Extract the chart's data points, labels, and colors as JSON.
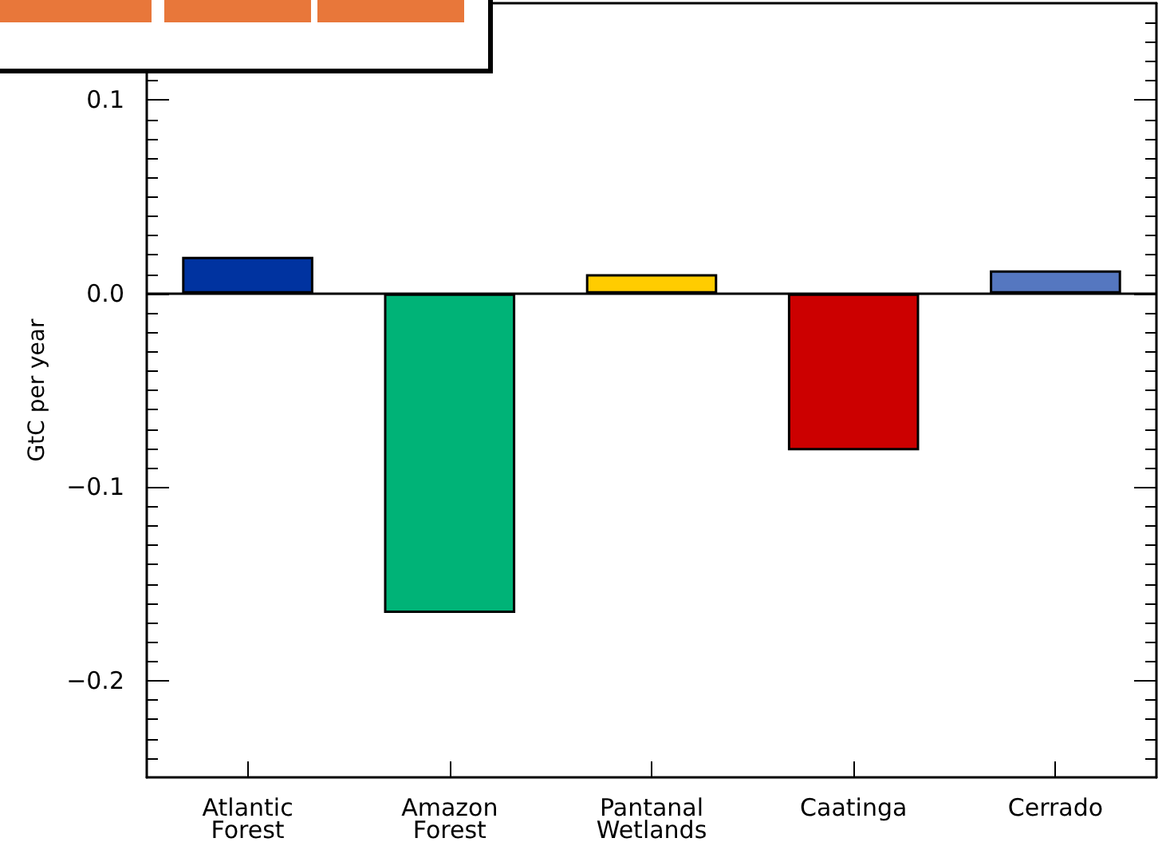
{
  "chart_data": {
    "type": "bar",
    "ylabel": "GtC per year",
    "categories": [
      "Atlantic\nForest",
      "Amazon\nForest",
      "Pantanal\nWetlands",
      "Caatinga",
      "Cerrado"
    ],
    "values": [
      0.019,
      -0.165,
      0.01,
      -0.081,
      0.012
    ],
    "colors": [
      "#0033a0",
      "#00b377",
      "#ffcc00",
      "#cc0000",
      "#5577c0"
    ],
    "ylim": [
      -0.25,
      0.15
    ],
    "yticks": [
      {
        "value": -0.24,
        "label": null
      },
      {
        "value": -0.23,
        "label": null
      },
      {
        "value": -0.22,
        "label": null
      },
      {
        "value": -0.21,
        "label": null
      },
      {
        "value": -0.2,
        "label": "−0.2"
      },
      {
        "value": -0.19,
        "label": null
      },
      {
        "value": -0.18,
        "label": null
      },
      {
        "value": -0.17,
        "label": null
      },
      {
        "value": -0.16,
        "label": null
      },
      {
        "value": -0.15,
        "label": null
      },
      {
        "value": -0.14,
        "label": null
      },
      {
        "value": -0.13,
        "label": null
      },
      {
        "value": -0.12,
        "label": null
      },
      {
        "value": -0.11,
        "label": null
      },
      {
        "value": -0.1,
        "label": "−0.1"
      },
      {
        "value": -0.09,
        "label": null
      },
      {
        "value": -0.08,
        "label": null
      },
      {
        "value": -0.07,
        "label": null
      },
      {
        "value": -0.06,
        "label": null
      },
      {
        "value": -0.05,
        "label": null
      },
      {
        "value": -0.04,
        "label": null
      },
      {
        "value": -0.03,
        "label": null
      },
      {
        "value": -0.02,
        "label": null
      },
      {
        "value": -0.01,
        "label": null
      },
      {
        "value": 0,
        "label": "0.0"
      },
      {
        "value": 0.01,
        "label": null
      },
      {
        "value": 0.02,
        "label": null
      },
      {
        "value": 0.03,
        "label": null
      },
      {
        "value": 0.04,
        "label": null
      },
      {
        "value": 0.05,
        "label": null
      },
      {
        "value": 0.06,
        "label": null
      },
      {
        "value": 0.07,
        "label": null
      },
      {
        "value": 0.08,
        "label": null
      },
      {
        "value": 0.09,
        "label": null
      },
      {
        "value": 0.1,
        "label": "0.1"
      },
      {
        "value": 0.11,
        "label": null
      },
      {
        "value": 0.12,
        "label": null
      },
      {
        "value": 0.13,
        "label": null
      },
      {
        "value": 0.14,
        "label": null
      }
    ],
    "ref_lines": [
      {
        "axis": "y",
        "value": 0,
        "color": "#000000"
      }
    ],
    "grid": false
  }
}
